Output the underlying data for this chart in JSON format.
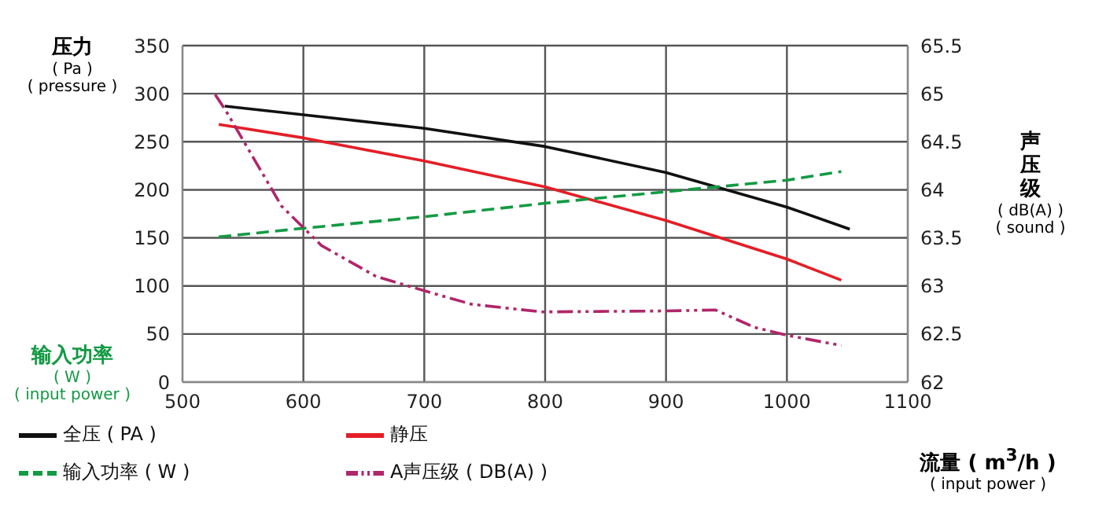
{
  "chart_data": {
    "type": "line",
    "ylabel": "压力\n( Pa )\n( pressure )",
    "y2label": "声压级\n( dB(A) )\n( sound )",
    "xlabel": "流量 ( m$^{3}$/h )\n( input power )",
    "annotations": [
      "输入功率\n( W )\n( input power )"
    ],
    "xlim": [
      500,
      1100
    ],
    "xticks": [
      500,
      600,
      700,
      800,
      900,
      1000,
      1100
    ],
    "ylim": [
      0,
      350
    ],
    "yticks": [
      0,
      50,
      100,
      150,
      200,
      250,
      300,
      350
    ],
    "y2lim": [
      62,
      65.5
    ],
    "y2ticks": [
      62,
      62.5,
      63,
      63.5,
      64,
      64.5,
      65,
      65.5
    ],
    "grid": true,
    "legend": "bottom",
    "marker": "none",
    "series": [
      {
        "name": "全压 ( PA )",
        "color": "#111111",
        "line_style": "solid",
        "x": [
          535,
          600,
          700,
          800,
          900,
          1000,
          1052
        ],
        "values": [
          287,
          278,
          264,
          245,
          218,
          182,
          159
        ]
      },
      {
        "name": "静压",
        "color": "#e41e26",
        "line_style": "solid",
        "x": [
          530,
          600,
          700,
          800,
          900,
          950,
          1000,
          1045
        ],
        "values": [
          268,
          254,
          230,
          203,
          168,
          148,
          128,
          106
        ]
      },
      {
        "name": "输入功率 ( W )",
        "color": "#139a43",
        "line_style": "dashed",
        "x": [
          530,
          600,
          700,
          800,
          900,
          1000,
          1045
        ],
        "values": [
          151,
          160,
          172,
          186,
          198,
          210,
          219
        ]
      },
      {
        "name": "A声压级 ( DB(A) )",
        "color": "#b0266a",
        "line_style": "dashdotdot",
        "axis": "y2",
        "x": [
          527,
          536,
          582,
          615,
          660,
          700,
          739,
          797,
          900,
          941,
          973,
          999,
          1045
        ],
        "values": [
          64.99,
          64.82,
          63.83,
          63.42,
          63.1,
          62.95,
          62.81,
          62.73,
          62.74,
          62.75,
          62.57,
          62.49,
          62.38
        ]
      }
    ]
  }
}
